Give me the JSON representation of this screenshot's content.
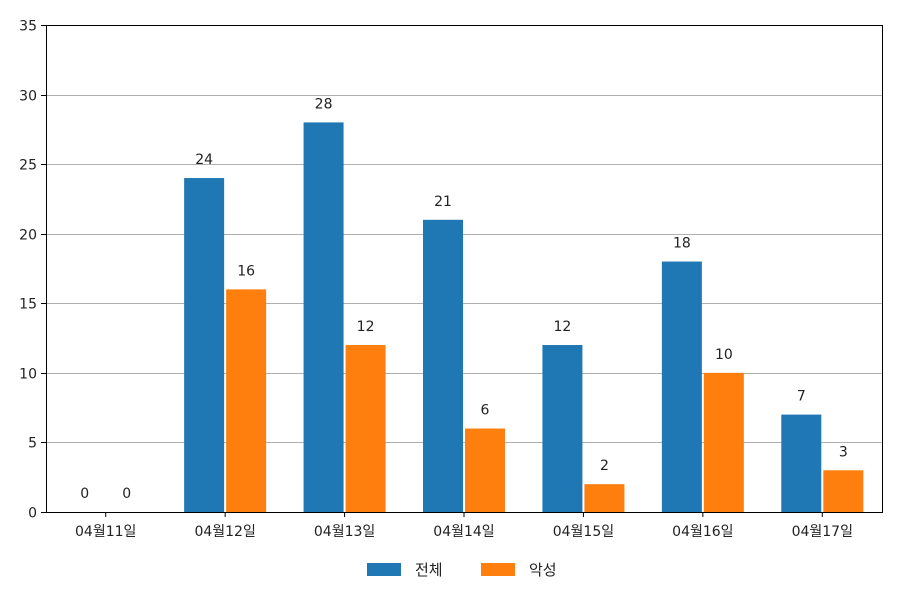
{
  "chart_data": {
    "type": "bar",
    "categories": [
      "04월11일",
      "04월12일",
      "04월13일",
      "04월14일",
      "04월15일",
      "04월16일",
      "04월17일"
    ],
    "series": [
      {
        "name": "전체",
        "values": [
          0,
          24,
          28,
          21,
          12,
          18,
          7
        ],
        "color": "#1f77b4"
      },
      {
        "name": "악성",
        "values": [
          0,
          16,
          12,
          6,
          2,
          10,
          3
        ],
        "color": "#ff7f0e"
      }
    ],
    "ylim": [
      0,
      35
    ],
    "yticks": [
      0,
      5,
      10,
      15,
      20,
      25,
      30,
      35
    ],
    "grid": true,
    "legend_position": "bottom-center",
    "show_data_labels": true
  }
}
